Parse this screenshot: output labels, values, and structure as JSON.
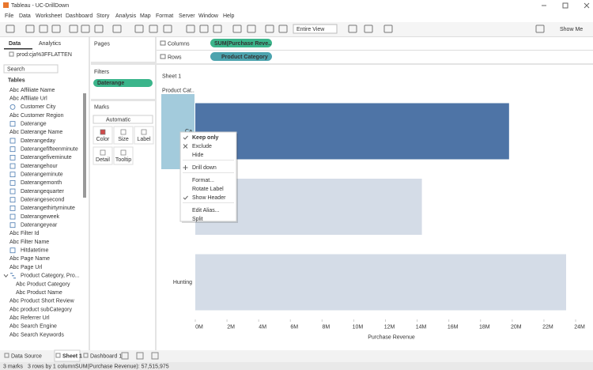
{
  "window": {
    "title": "Tableau - UC-DrillDown"
  },
  "menu": [
    "File",
    "Data",
    "Worksheet",
    "Dashboard",
    "Story",
    "Analysis",
    "Map",
    "Format",
    "Server",
    "Window",
    "Help"
  ],
  "toolbar": {
    "fit": "Entire View",
    "show_me": "Show Me"
  },
  "data_pane": {
    "tabs": [
      "Data",
      "Analytics"
    ],
    "source": "prod:cja%3FFLATTEN",
    "search": "Search",
    "heading": "Tables",
    "abc_label": "Abc",
    "fields": [
      {
        "name": "Affiliate Name",
        "icon": "abc"
      },
      {
        "name": "Affiliate Url",
        "icon": "abc"
      },
      {
        "name": "Customer City",
        "icon": "geo"
      },
      {
        "name": "Customer Region",
        "icon": "abc"
      },
      {
        "name": "Daterange",
        "icon": "date"
      },
      {
        "name": "Daterange Name",
        "icon": "abc"
      },
      {
        "name": "Daterangeday",
        "icon": "date"
      },
      {
        "name": "Daterangefifteenminute",
        "icon": "date"
      },
      {
        "name": "Daterangefiveminute",
        "icon": "date"
      },
      {
        "name": "Daterangehour",
        "icon": "date"
      },
      {
        "name": "Daterangeminute",
        "icon": "date"
      },
      {
        "name": "Daterangemonth",
        "icon": "date"
      },
      {
        "name": "Daterangequarter",
        "icon": "date"
      },
      {
        "name": "Daterangesecond",
        "icon": "date"
      },
      {
        "name": "Daterangethirtyminute",
        "icon": "date"
      },
      {
        "name": "Daterangeweek",
        "icon": "date"
      },
      {
        "name": "Daterangeyear",
        "icon": "date"
      },
      {
        "name": "Filter Id",
        "icon": "abc"
      },
      {
        "name": "Filter Name",
        "icon": "abc"
      },
      {
        "name": "Hitdatetime",
        "icon": "date"
      },
      {
        "name": "Page Name",
        "icon": "abc"
      },
      {
        "name": "Page Url",
        "icon": "abc"
      },
      {
        "name": "Product Category, Pro...",
        "icon": "hierarchy"
      },
      {
        "name": "Product Category",
        "icon": "abc",
        "indent": true
      },
      {
        "name": "Product Name",
        "icon": "abc",
        "indent": true
      },
      {
        "name": "Product Short Review",
        "icon": "abc"
      },
      {
        "name": "product subCategory",
        "icon": "abc"
      },
      {
        "name": "Referrer Url",
        "icon": "abc"
      },
      {
        "name": "Search Engine",
        "icon": "abc"
      },
      {
        "name": "Search Keywords",
        "icon": "abc"
      }
    ]
  },
  "cards": {
    "pages": "Pages",
    "filters": "Filters",
    "filter_pill": "Daterange",
    "marks": "Marks",
    "mark_type": "Automatic",
    "mark_buttons": [
      "Color",
      "Size",
      "Label",
      "Detail",
      "Tooltip"
    ]
  },
  "shelves": {
    "columns": "Columns",
    "columns_pill": "SUM(Purchase Reve..",
    "rows": "Rows",
    "rows_pill": "Product Category"
  },
  "sheet_title": "Sheet 1",
  "chart_data": {
    "type": "bar",
    "orientation": "horizontal",
    "row_header": "Product Cat..",
    "x_label": "Purchase Revenue",
    "categories": [
      "Ca",
      "Fi",
      "Hunting"
    ],
    "values": [
      19800000,
      14300000,
      23400000
    ],
    "bar_colors": [
      "#4e74a6",
      "#d4dce7",
      "#d4dce7"
    ],
    "xlim": [
      0,
      24000000
    ],
    "xticks": [
      {
        "value": 0,
        "label": "0M"
      },
      {
        "value": 2000000,
        "label": "2M"
      },
      {
        "value": 4000000,
        "label": "4M"
      },
      {
        "value": 6000000,
        "label": "6M"
      },
      {
        "value": 8000000,
        "label": "8M"
      },
      {
        "value": 10000000,
        "label": "10M"
      },
      {
        "value": 12000000,
        "label": "12M"
      },
      {
        "value": 14000000,
        "label": "14M"
      },
      {
        "value": 16000000,
        "label": "16M"
      },
      {
        "value": 18000000,
        "label": "18M"
      },
      {
        "value": 20000000,
        "label": "20M"
      },
      {
        "value": 22000000,
        "label": "22M"
      },
      {
        "value": 24000000,
        "label": "24M"
      }
    ]
  },
  "context_menu": [
    [
      {
        "label": "Keep only",
        "icon": "check",
        "bold": true
      },
      {
        "label": "Exclude",
        "icon": "x"
      },
      {
        "label": "Hide"
      }
    ],
    [
      {
        "label": "Drill down",
        "icon": "plus"
      }
    ],
    [
      {
        "label": "Format..."
      },
      {
        "label": "Rotate Label"
      },
      {
        "label": "Show Header",
        "icon": "check"
      }
    ],
    [
      {
        "label": "Edit Alias..."
      },
      {
        "label": "Split"
      }
    ]
  ],
  "tabs": [
    "Data Source",
    "Sheet 1",
    "Dashboard 1"
  ],
  "status": [
    "3 marks",
    "3 rows by 1 column",
    "SUM(Purchase Revenue): 57,515,975"
  ]
}
